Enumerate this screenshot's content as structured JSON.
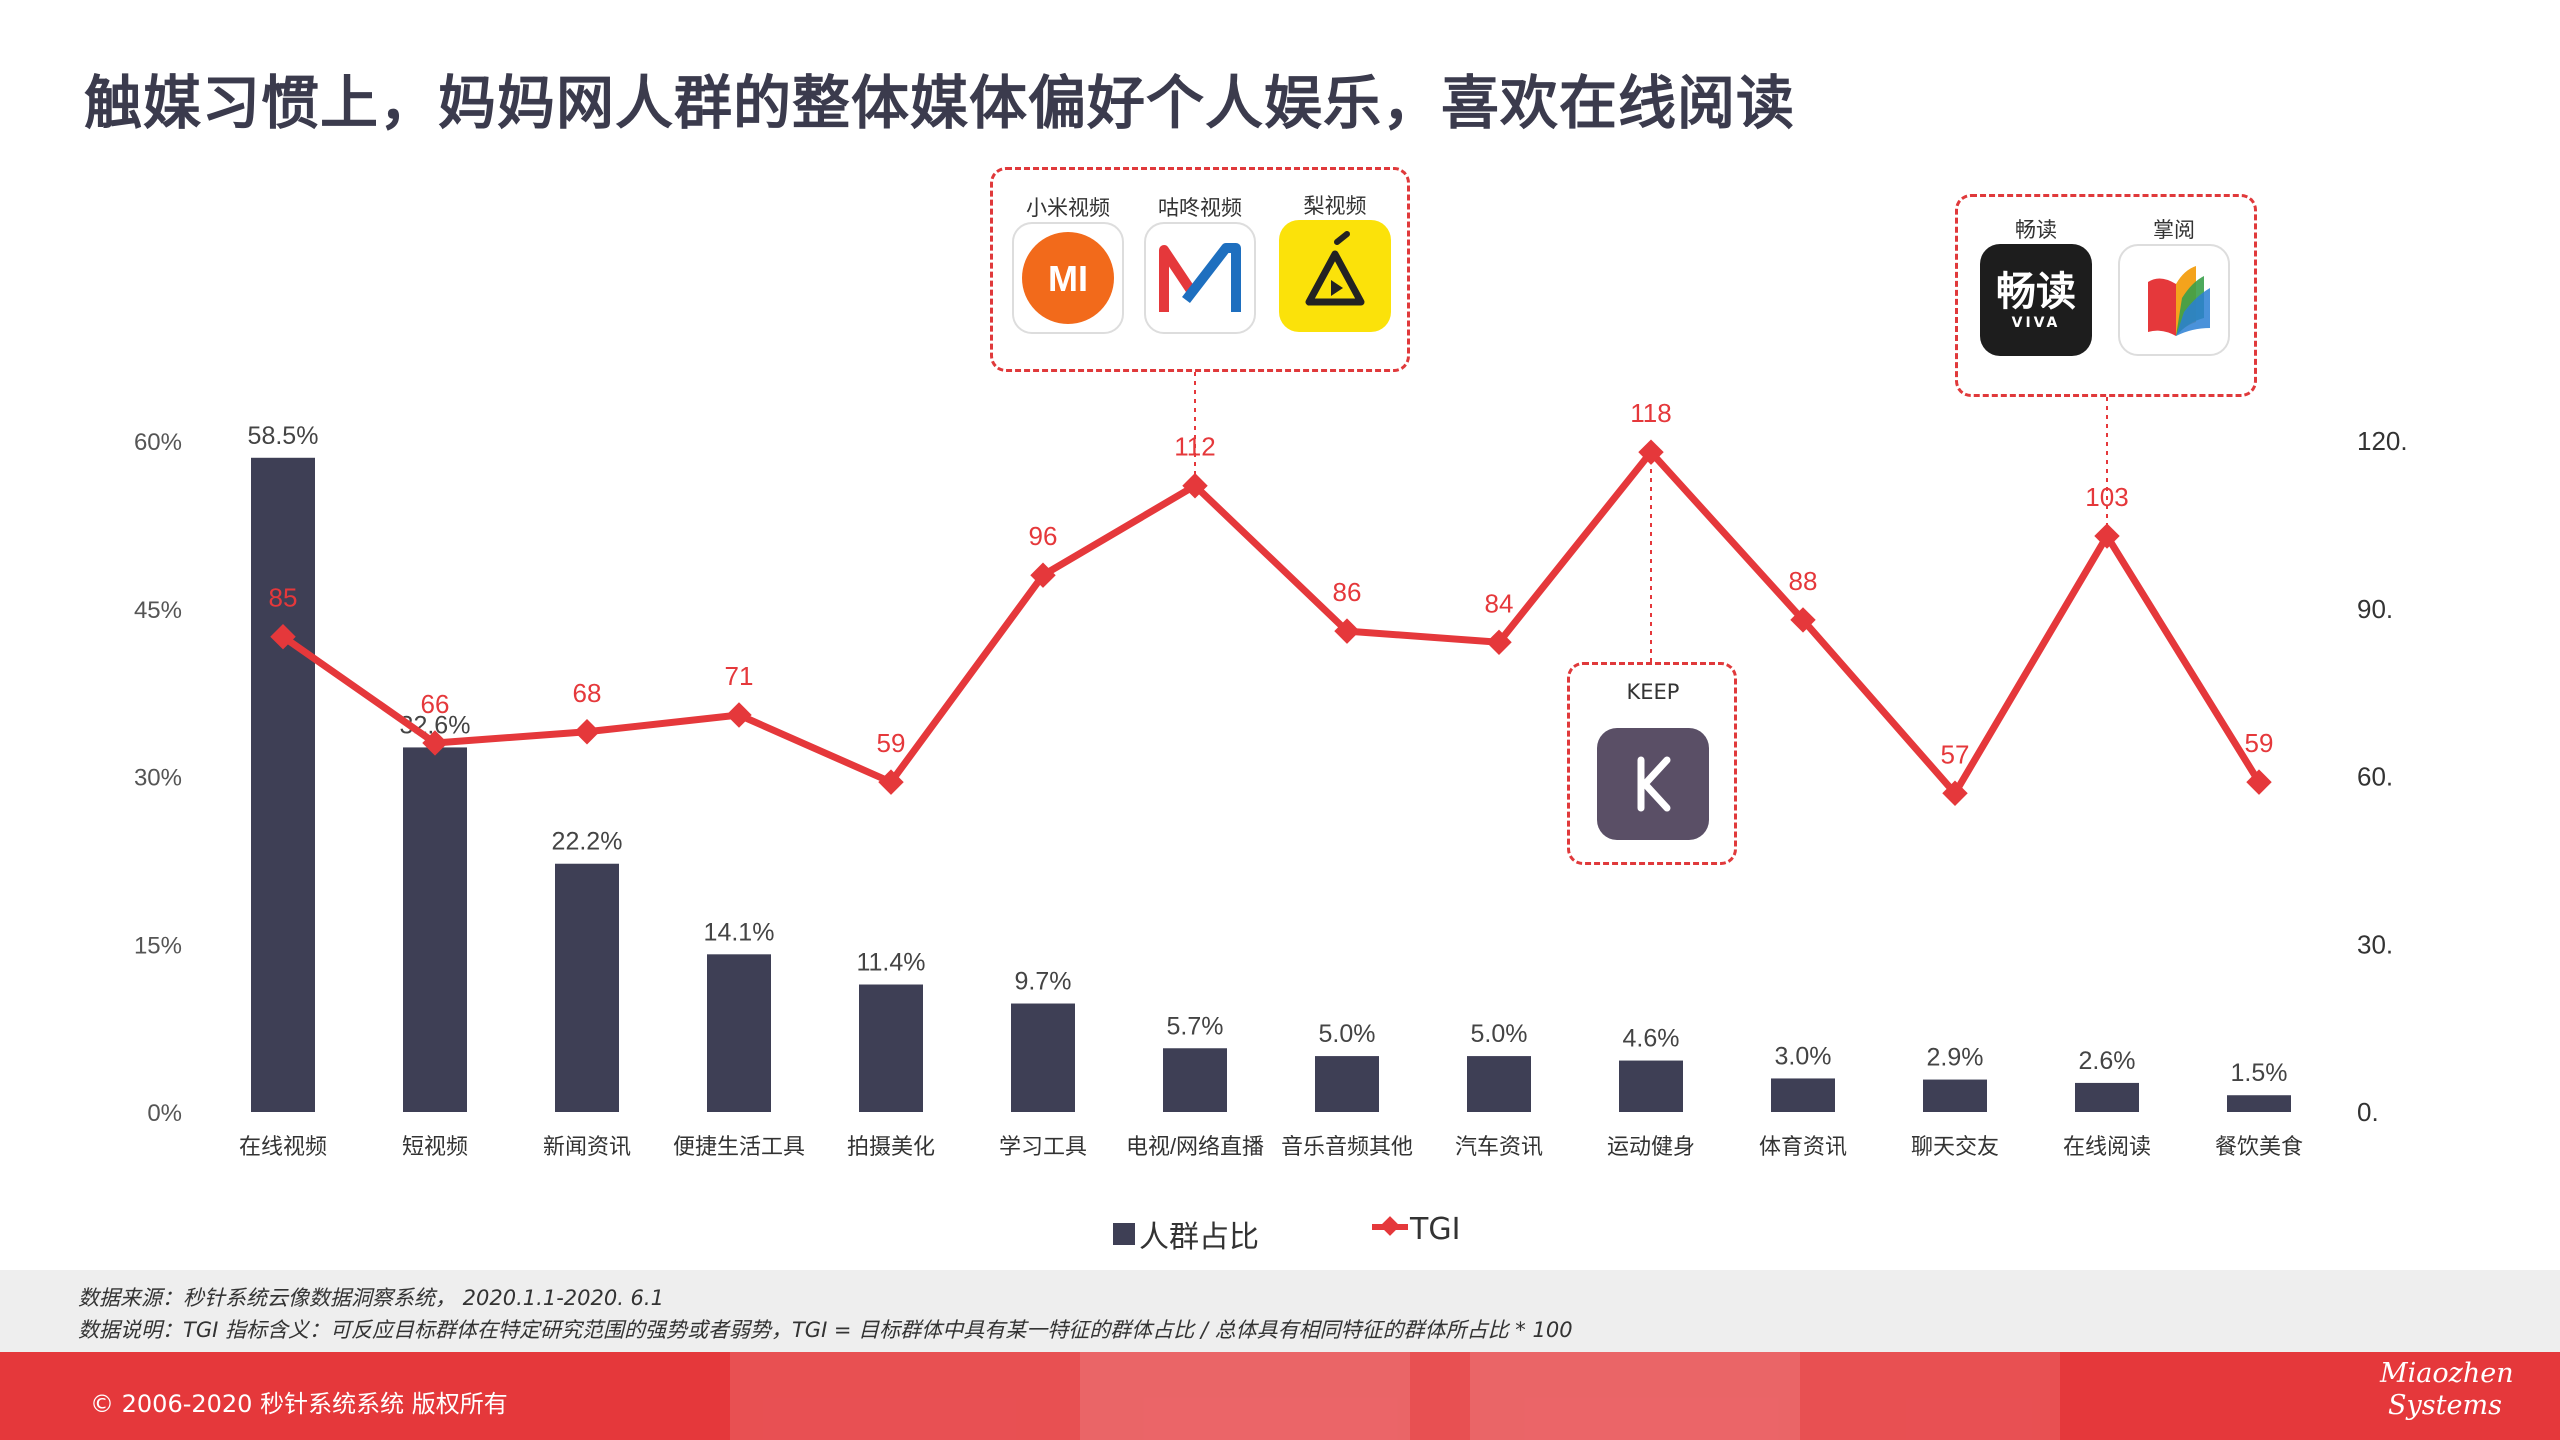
{
  "title": "触媒习惯上，妈妈网人群的整体媒体偏好个人娱乐，喜欢在线阅读",
  "chart_data": {
    "type": "bar",
    "categories": [
      "在线视频",
      "短视频",
      "新闻资讯",
      "便捷生活工具",
      "拍摄美化",
      "学习工具",
      "电视/网络直播",
      "音乐音频其他",
      "汽车资讯",
      "运动健身",
      "体育资讯",
      "聊天交友",
      "在线阅读",
      "餐饮美食"
    ],
    "series": [
      {
        "name": "人群占比",
        "type": "bar",
        "axis": "left",
        "values": [
          58.5,
          32.6,
          22.2,
          14.1,
          11.4,
          9.7,
          5.7,
          5.0,
          5.0,
          4.6,
          3.0,
          2.9,
          2.6,
          1.5
        ],
        "labels": [
          "58.5%",
          "32.6%",
          "22.2%",
          "14.1%",
          "11.4%",
          "9.7%",
          "5.7%",
          "5.0%",
          "5.0%",
          "4.6%",
          "3.0%",
          "2.9%",
          "2.6%",
          "1.5%"
        ],
        "color": "#3e3f55"
      },
      {
        "name": "TGI",
        "type": "line",
        "axis": "right",
        "values": [
          85,
          66,
          68,
          71,
          59,
          96,
          112,
          86,
          84,
          118,
          88,
          57,
          103,
          59
        ],
        "color": "#e5383b"
      }
    ],
    "left_axis": {
      "ylim": [
        0,
        60
      ],
      "ticks": [
        0,
        15,
        30,
        45,
        60
      ],
      "tick_labels": [
        "0%",
        "15%",
        "30%",
        "45%",
        "60%"
      ]
    },
    "right_axis": {
      "ylim": [
        0,
        120
      ],
      "ticks": [
        0,
        30,
        60,
        90,
        120
      ],
      "tick_labels": [
        "0.",
        "30.",
        "60.",
        "90.",
        "120."
      ]
    },
    "grid": false,
    "legend_position": "bottom"
  },
  "callouts": {
    "video": {
      "apps": [
        {
          "label": "小米视频",
          "icon": "xiaomi-video-icon",
          "color": "#f26a1b"
        },
        {
          "label": "咕咚视频",
          "icon": "gudong-video-icon",
          "color": "#1e6fbf"
        },
        {
          "label": "梨视频",
          "icon": "pear-video-icon",
          "color": "#fbe20a"
        }
      ]
    },
    "keep": {
      "apps": [
        {
          "label": "KEEP",
          "icon": "keep-icon",
          "color": "#5a4f66"
        }
      ]
    },
    "reading": {
      "apps": [
        {
          "label": "畅读",
          "icon": "changdu-icon",
          "color": "#1d1d1d",
          "icon_text": "畅读",
          "icon_sub": "VIVA"
        },
        {
          "label": "掌阅",
          "icon": "zhangyue-icon",
          "color": "#e5383b"
        }
      ]
    }
  },
  "source": {
    "line1": "数据来源：秒针系统云像数据洞察系统， 2020.1.1-2020. 6.1",
    "line2": "数据说明：TGI 指标含义：可反应目标群体在特定研究范围的强势或者弱势，TGI = 目标群体中具有某一特征的群体占比 / 总体具有相同特征的群体所占比 * 100"
  },
  "footer": {
    "copyright": "© 2006-2020 秒针系统系统 版权所有",
    "brand_line1": "Miaozhen",
    "brand_line2": "Systems"
  }
}
